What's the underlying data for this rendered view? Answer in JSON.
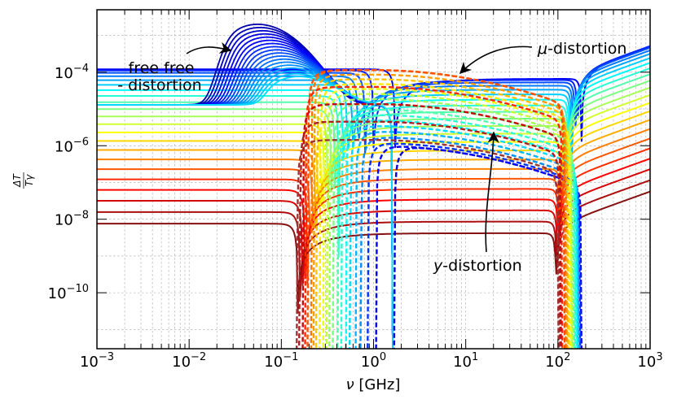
{
  "chart_data": {
    "type": "line",
    "xscale": "log",
    "yscale": "log",
    "xlim": [
      0.001,
      1000
    ],
    "ylim": [
      3e-12,
      0.005
    ],
    "xlabel": "ν [GHz]",
    "ylabel_num": "ΔT",
    "ylabel_den": "Tγ",
    "grid": true,
    "x_ticks": [
      {
        "value": 0.001,
        "base": "10",
        "exp": "−3"
      },
      {
        "value": 0.01,
        "base": "10",
        "exp": "−2"
      },
      {
        "value": 0.1,
        "base": "10",
        "exp": "−1"
      },
      {
        "value": 1,
        "base": "10",
        "exp": "0"
      },
      {
        "value": 10,
        "base": "10",
        "exp": "1"
      },
      {
        "value": 100,
        "base": "10",
        "exp": "2"
      },
      {
        "value": 1000,
        "base": "10",
        "exp": "3"
      }
    ],
    "y_ticks": [
      {
        "value": 1e-10,
        "base": "10",
        "exp": "−10"
      },
      {
        "value": 1e-08,
        "base": "10",
        "exp": "−8"
      },
      {
        "value": 1e-06,
        "base": "10",
        "exp": "−6"
      },
      {
        "value": 0.0001,
        "base": "10",
        "exp": "−4"
      }
    ],
    "series_groups": [
      {
        "name": "free-free distortion",
        "style": "solid",
        "count": 18,
        "peak_x": 0.055,
        "peak_y_max": 0.002
      },
      {
        "name": "μ-distortion",
        "style": "solid",
        "count": 22,
        "plateau_y_max": 0.00012,
        "zero_crossing_range": [
          0.15,
          1.7
        ]
      },
      {
        "name": "y-distortion",
        "style": "dashed",
        "count": 22,
        "peak_x": 1.0,
        "peak_y_max": 0.00036,
        "zero_crossing_range": [
          0.15,
          1.7
        ]
      }
    ],
    "colormap": [
      "#00007f",
      "#0000ff",
      "#007fff",
      "#00ffff",
      "#7fff7f",
      "#ffff00",
      "#ff7f00",
      "#ff0000",
      "#7f0000"
    ],
    "annotations": [
      {
        "id": "ff",
        "line1": "free free",
        "line2": "- distortion"
      },
      {
        "id": "mu",
        "text": "-distortion",
        "symbol": "μ"
      },
      {
        "id": "y",
        "text": "-distortion",
        "symbol": "y"
      }
    ]
  }
}
